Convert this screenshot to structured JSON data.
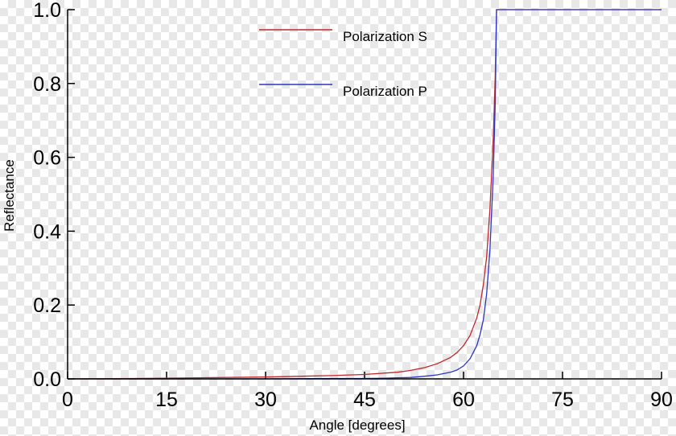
{
  "chart_data": {
    "type": "line",
    "title": "",
    "xlabel": "Angle [degrees]",
    "ylabel": "Reflectance",
    "xlim": [
      0,
      90
    ],
    "ylim": [
      0,
      1
    ],
    "x_ticks": [
      "0",
      "15",
      "30",
      "45",
      "60",
      "75",
      "90"
    ],
    "y_ticks": [
      "0.0",
      "0.2",
      "0.4",
      "0.6",
      "0.8",
      "1.0"
    ],
    "grid": false,
    "legend_position": "top-center",
    "series": [
      {
        "name": "Polarization S",
        "color": "#c0272d",
        "x": [
          0,
          10,
          20,
          30,
          35,
          40,
          45,
          50,
          52,
          54,
          56,
          58,
          59,
          60,
          61,
          62,
          62.5,
          63,
          63.5,
          64,
          64.5,
          64.8,
          65,
          70,
          75,
          80,
          85,
          90
        ],
        "y": [
          0.0,
          0.001,
          0.003,
          0.005,
          0.007,
          0.009,
          0.012,
          0.018,
          0.023,
          0.03,
          0.041,
          0.058,
          0.071,
          0.09,
          0.118,
          0.165,
          0.2,
          0.255,
          0.33,
          0.46,
          0.65,
          0.82,
          1.0,
          1.0,
          1.0,
          1.0,
          1.0,
          1.0
        ]
      },
      {
        "name": "Polarization P",
        "color": "#2b35c8",
        "x": [
          0,
          10,
          20,
          30,
          40,
          45,
          48,
          50,
          52,
          54,
          56,
          58,
          59,
          60,
          61,
          62,
          62.5,
          63,
          63.5,
          64,
          64.5,
          64.8,
          65,
          70,
          75,
          80,
          85,
          90
        ],
        "y": [
          0.0,
          0.0,
          0.0,
          0.0,
          0.001,
          0.001,
          0.002,
          0.003,
          0.004,
          0.007,
          0.011,
          0.018,
          0.024,
          0.035,
          0.055,
          0.09,
          0.12,
          0.16,
          0.23,
          0.35,
          0.55,
          0.75,
          1.0,
          1.0,
          1.0,
          1.0,
          1.0,
          1.0
        ]
      }
    ]
  }
}
